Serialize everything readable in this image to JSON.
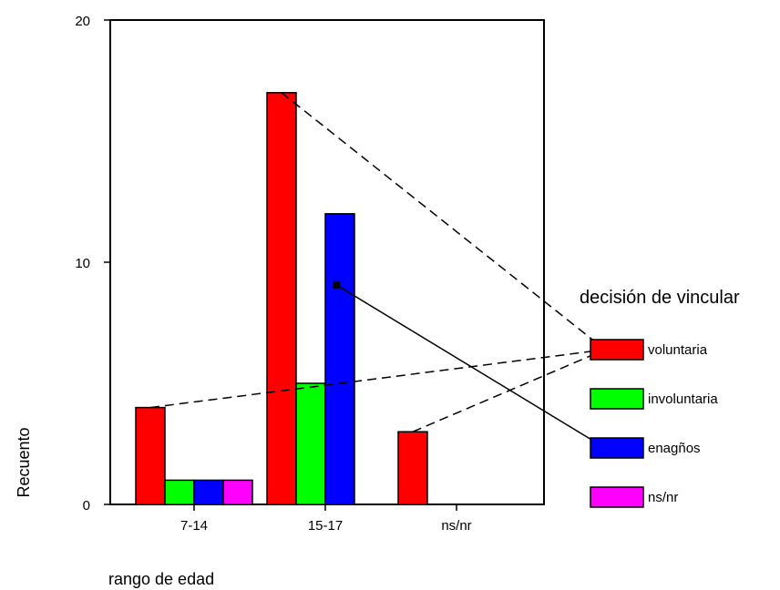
{
  "chart_data": {
    "type": "bar",
    "categories": [
      "7-14",
      "15-17",
      "ns/nr"
    ],
    "series": [
      {
        "name": "voluntaria",
        "values": [
          4,
          17,
          3
        ],
        "color": "#ff0000"
      },
      {
        "name": "involuntaria",
        "values": [
          1,
          5,
          0
        ],
        "color": "#00ff00"
      },
      {
        "name": "enagños",
        "values": [
          1,
          12,
          0
        ],
        "color": "#0000ff"
      },
      {
        "name": "ns/nr",
        "values": [
          1,
          0,
          0
        ],
        "color": "#ff00ff"
      }
    ],
    "ylabel": "Recuento",
    "xlabel": "rango de edad",
    "legend_title": "decisión de vincular",
    "legend_position": "right",
    "ylim": [
      0,
      20
    ],
    "yticks": [
      0,
      10,
      20
    ],
    "grid": false,
    "annotations": [
      {
        "style": "dashed",
        "from": {
          "category": "7-14",
          "series": "voluntaria"
        },
        "to": "legend:voluntaria"
      },
      {
        "style": "dashed",
        "from": {
          "category": "15-17",
          "series": "voluntaria"
        },
        "to": "legend:voluntaria"
      },
      {
        "style": "dashed",
        "from": {
          "category": "ns/nr",
          "series": "voluntaria"
        },
        "to": "legend:voluntaria"
      },
      {
        "style": "solid",
        "from": {
          "category": "15-17",
          "series": "enagños"
        },
        "to": "legend:enagños"
      }
    ]
  }
}
